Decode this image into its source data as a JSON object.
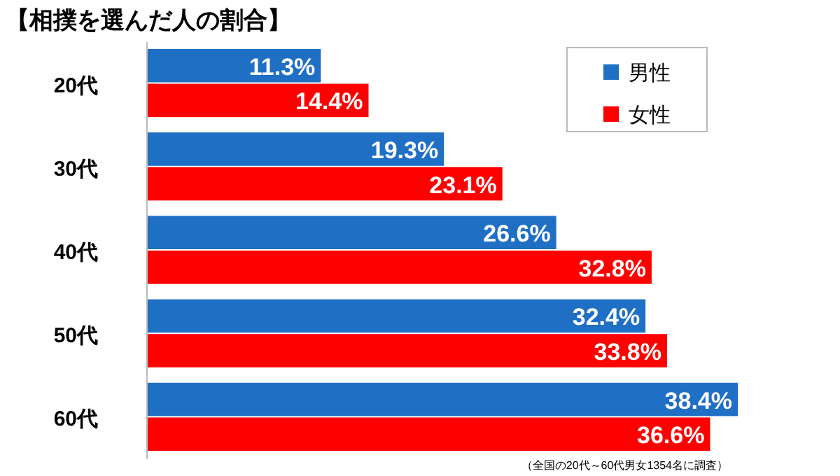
{
  "chart_data": {
    "type": "bar",
    "orientation": "horizontal",
    "title": "【相撲を選んだ人の割合】",
    "categories": [
      "20代",
      "30代",
      "40代",
      "50代",
      "60代"
    ],
    "series": [
      {
        "name": "男性",
        "color": "#1f6fc5",
        "values": [
          11.3,
          19.3,
          26.6,
          32.4,
          38.4
        ],
        "value_labels": [
          "11.3%",
          "19.3%",
          "26.6%",
          "32.4%",
          "38.4%"
        ]
      },
      {
        "name": "女性",
        "color": "#ff0000",
        "values": [
          14.4,
          23.1,
          32.8,
          33.8,
          36.6
        ],
        "value_labels": [
          "14.4%",
          "23.1%",
          "32.8%",
          "33.8%",
          "36.6%"
        ]
      }
    ],
    "tick_labels": "y",
    "legend": "top right",
    "annotations": [
      "（全国の20代～60代男女1354名に調査）"
    ]
  }
}
